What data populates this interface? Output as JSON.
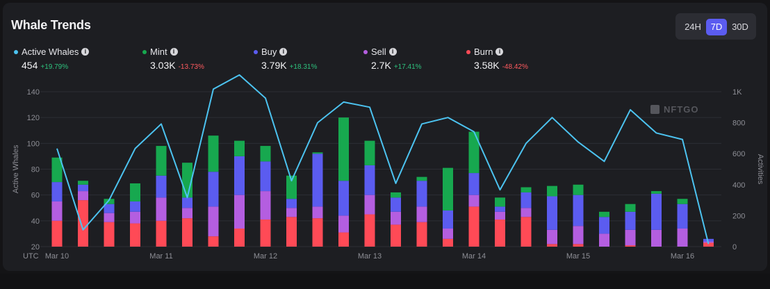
{
  "title": "Whale Trends",
  "ranges": [
    "24H",
    "7D",
    "30D"
  ],
  "active_range": "7D",
  "legend": [
    {
      "name": "Active Whales",
      "color": "#4cc3f0",
      "value": "454",
      "change": "+19.79%",
      "dir": "up"
    },
    {
      "name": "Mint",
      "color": "#17a84f",
      "value": "3.03K",
      "change": "-13.73%",
      "dir": "down"
    },
    {
      "name": "Buy",
      "color": "#5b5cf0",
      "value": "3.79K",
      "change": "+18.31%",
      "dir": "up"
    },
    {
      "name": "Sell",
      "color": "#b45ee0",
      "value": "2.7K",
      "change": "+17.41%",
      "dir": "up"
    },
    {
      "name": "Burn",
      "color": "#ff4a56",
      "value": "3.58K",
      "change": "-48.42%",
      "dir": "down"
    }
  ],
  "watermark": "NFTGO",
  "chart_data": {
    "type": "bar",
    "title": "Whale Trends",
    "xlabel": "",
    "x_axis_prefix": "UTC",
    "x_ticks": [
      "Mar 10",
      "Mar 11",
      "Mar 12",
      "Mar 13",
      "Mar 14",
      "Mar 15",
      "Mar 16"
    ],
    "x_tick_index": [
      0,
      4,
      8,
      12,
      16,
      20,
      24
    ],
    "y_left": {
      "label": "Active Whales",
      "min": 20,
      "max": 140,
      "ticks": [
        20,
        40,
        60,
        80,
        100,
        120,
        140
      ],
      "tick_labels": [
        "20",
        "40",
        "60",
        "80",
        "100",
        "120",
        "140"
      ]
    },
    "y_right": {
      "label": "Activities",
      "min": 0,
      "max": 1000,
      "ticks": [
        0,
        200,
        400,
        600,
        800,
        1000
      ],
      "tick_labels": [
        "0",
        "200",
        "400",
        "600",
        "800",
        "1K"
      ]
    },
    "stack_order": [
      "Burn",
      "Sell",
      "Buy",
      "Mint"
    ],
    "series": [
      {
        "name": "Burn",
        "color": "#ff4a56",
        "values": [
          40,
          56,
          39,
          38,
          40,
          42,
          28,
          34,
          41,
          43,
          42,
          31,
          45,
          37,
          39,
          26,
          51,
          41,
          43,
          22,
          22,
          20,
          21,
          20,
          20,
          23
        ]
      },
      {
        "name": "Sell",
        "color": "#b45ee0",
        "values": [
          55,
          63,
          46,
          47,
          58,
          50,
          51,
          60,
          63,
          50,
          51,
          44,
          60,
          47,
          51,
          34,
          60,
          47,
          50,
          33,
          36,
          30,
          33,
          33,
          34,
          24
        ]
      },
      {
        "name": "Buy",
        "color": "#5b5cf0",
        "values": [
          70,
          68,
          53,
          55,
          75,
          58,
          78,
          90,
          86,
          57,
          92,
          71,
          83,
          58,
          71,
          48,
          77,
          51,
          62,
          59,
          60,
          43,
          47,
          61,
          53,
          26
        ]
      },
      {
        "name": "Mint",
        "color": "#17a84f",
        "values": [
          89,
          71,
          57,
          69,
          98,
          85,
          106,
          102,
          98,
          75,
          93,
          120,
          102,
          62,
          74,
          81,
          109,
          58,
          66,
          67,
          68,
          47,
          53,
          63,
          57,
          26
        ]
      }
    ],
    "line_series": {
      "name": "Active Whales",
      "color": "#4cc3f0",
      "values": [
        96,
        33,
        56,
        96,
        115,
        58,
        142,
        153,
        135,
        71,
        116,
        132,
        128,
        69,
        115,
        120,
        109,
        64,
        100,
        120,
        101,
        86,
        126,
        108,
        103,
        22
      ]
    }
  }
}
